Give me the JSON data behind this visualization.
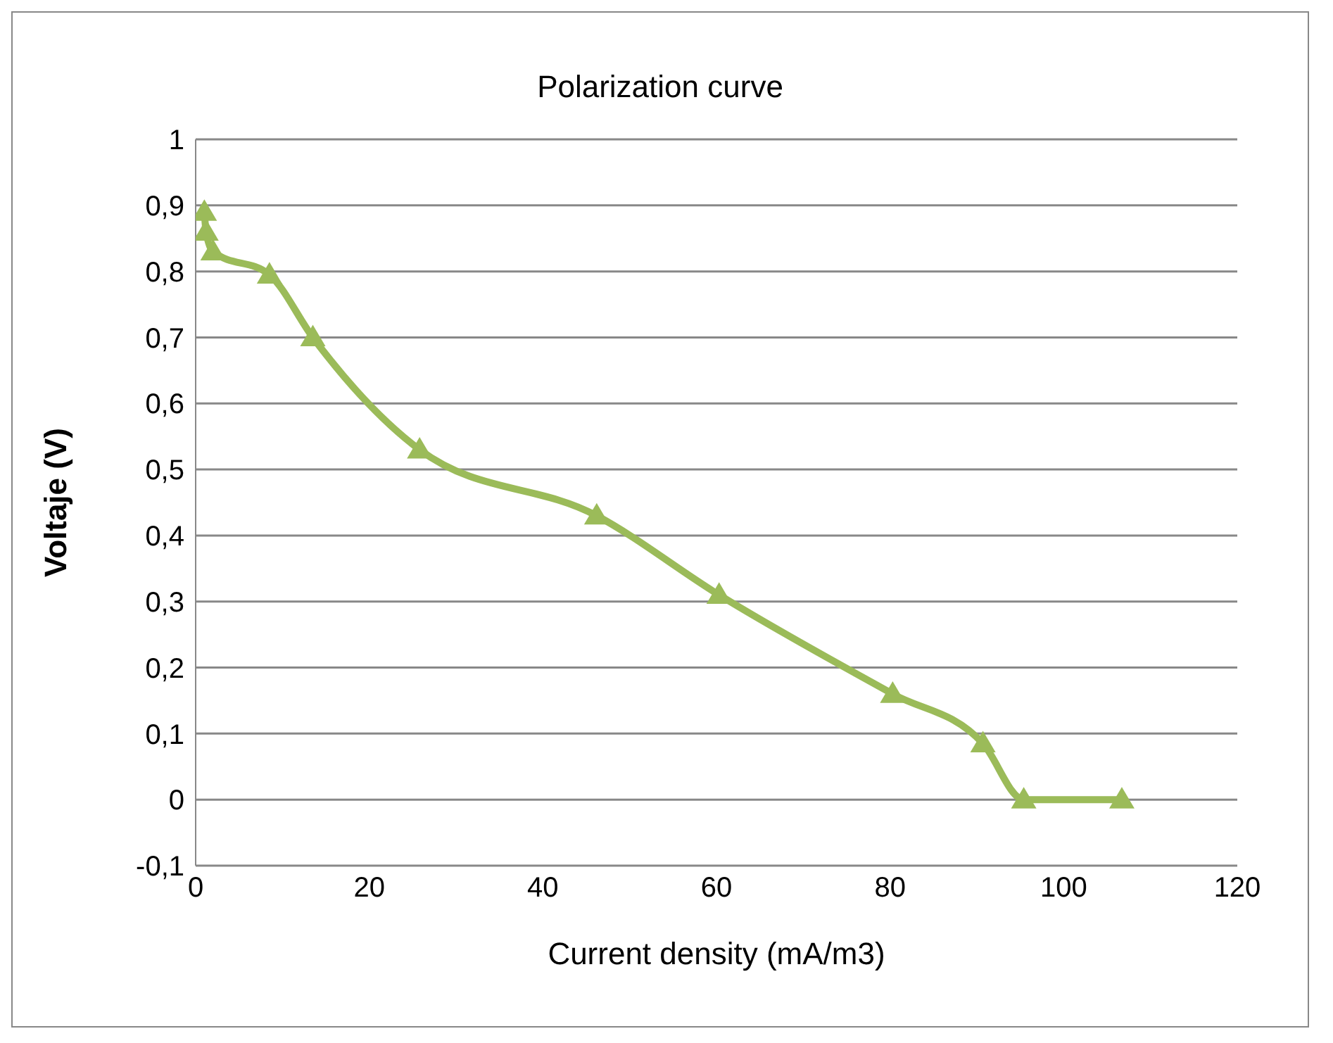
{
  "chart_data": {
    "type": "line",
    "title": "Polarization curve",
    "xlabel": "Current density (mA/m3)",
    "ylabel": "Voltaje (V)",
    "x": [
      1,
      1.2,
      2,
      8.5,
      13.5,
      25.8,
      46.2,
      60.3,
      80.3,
      90.7,
      95.4,
      106.7
    ],
    "series": [
      {
        "color": "#9bbb59",
        "values": [
          0.89,
          0.86,
          0.83,
          0.795,
          0.7,
          0.53,
          0.43,
          0.31,
          0.16,
          0.085,
          0.0,
          0.0
        ]
      }
    ],
    "xlim": [
      0,
      120
    ],
    "xticks": [
      0,
      20,
      40,
      60,
      80,
      100,
      120
    ],
    "ylim": [
      -0.1,
      1
    ],
    "yticks": [
      {
        "value": -0.1,
        "label": "-0,1"
      },
      0,
      {
        "value": 0.1,
        "label": "0,1"
      },
      {
        "value": 0.2,
        "label": "0,2"
      },
      {
        "value": 0.3,
        "label": "0,3"
      },
      {
        "value": 0.4,
        "label": "0,4"
      },
      {
        "value": 0.5,
        "label": "0,5"
      },
      {
        "value": 0.6,
        "label": "0,6"
      },
      {
        "value": 0.7,
        "label": "0,7"
      },
      {
        "value": 0.8,
        "label": "0,8"
      },
      {
        "value": 0.9,
        "label": "0,9"
      },
      1
    ],
    "grid": "y",
    "marker": "triangle",
    "line_style": "solid",
    "legend": false
  }
}
